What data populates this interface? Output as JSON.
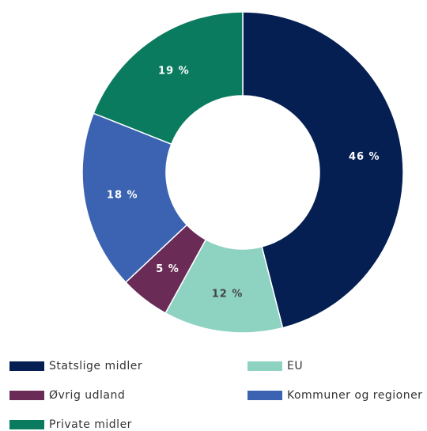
{
  "chart_data": {
    "type": "donut",
    "categories": [
      "Statslige midler",
      "EU",
      "Øvrig udland",
      "Kommuner og regioner",
      "Private midler"
    ],
    "values": [
      46,
      12,
      5,
      18,
      19
    ],
    "value_labels": [
      "46 %",
      "12 %",
      "5 %",
      "18 %",
      "19 %"
    ],
    "colors": [
      "#051f52",
      "#8ed3c2",
      "#6a2c57",
      "#3b63b2",
      "#0b7b5f"
    ],
    "label_colors": [
      "#ffffff",
      "#444444",
      "#ffffff",
      "#ffffff",
      "#ffffff"
    ]
  }
}
